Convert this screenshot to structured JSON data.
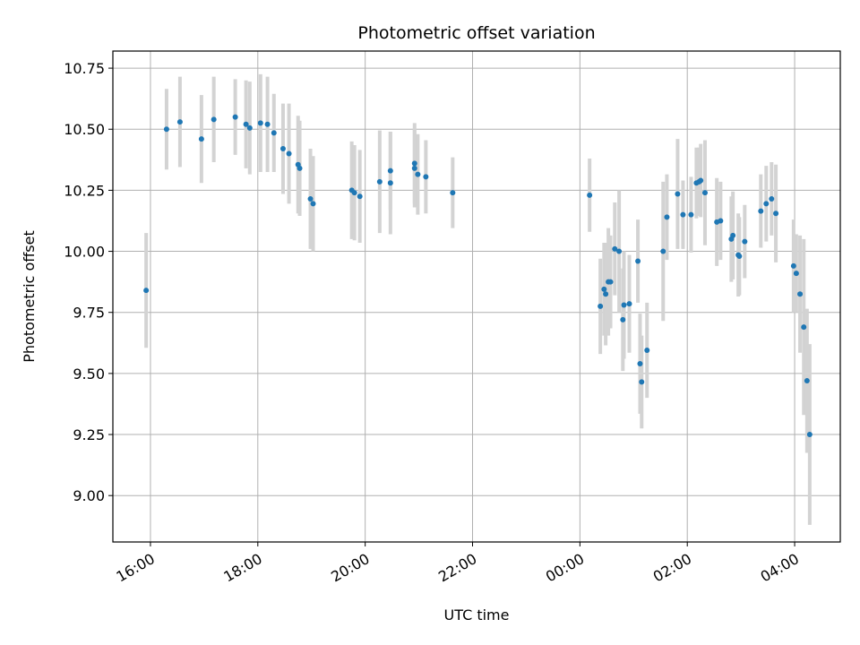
{
  "chart_data": {
    "type": "scatter",
    "title": "Photometric offset variation",
    "xlabel": "UTC time",
    "ylabel": "Photometric offset",
    "x_unit": "hours since 16:00 UTC (day 1)",
    "xlim": [
      -0.7,
      12.85
    ],
    "ylim": [
      8.81,
      10.82
    ],
    "grid": true,
    "x_ticks": [
      {
        "value": 0,
        "label": "16:00"
      },
      {
        "value": 2,
        "label": "18:00"
      },
      {
        "value": 4,
        "label": "20:00"
      },
      {
        "value": 6,
        "label": "22:00"
      },
      {
        "value": 8,
        "label": "00:00"
      },
      {
        "value": 10,
        "label": "02:00"
      },
      {
        "value": 12,
        "label": "04:00"
      }
    ],
    "y_ticks": [
      {
        "value": 9.0,
        "label": "9.00"
      },
      {
        "value": 9.25,
        "label": "9.25"
      },
      {
        "value": 9.5,
        "label": "9.50"
      },
      {
        "value": 9.75,
        "label": "9.75"
      },
      {
        "value": 10.0,
        "label": "10.00"
      },
      {
        "value": 10.25,
        "label": "10.25"
      },
      {
        "value": 10.5,
        "label": "10.50"
      },
      {
        "value": 10.75,
        "label": "10.75"
      }
    ],
    "marker_color": "#1f77b4",
    "errorbar_color": "#d3d3d3",
    "series": [
      {
        "name": "Photometric offset",
        "x": [
          -0.08,
          0.3,
          0.55,
          0.95,
          1.18,
          1.58,
          1.78,
          1.85,
          2.05,
          2.18,
          2.3,
          2.47,
          2.58,
          2.75,
          2.78,
          2.98,
          3.03,
          3.75,
          3.8,
          3.9,
          4.27,
          4.47,
          4.47,
          4.92,
          4.92,
          4.98,
          5.13,
          5.63,
          8.18,
          8.38,
          8.45,
          8.48,
          8.53,
          8.57,
          8.65,
          8.73,
          8.8,
          8.82,
          8.92,
          9.08,
          9.12,
          9.15,
          9.25,
          9.55,
          9.62,
          9.82,
          9.92,
          10.07,
          10.17,
          10.22,
          10.25,
          10.33,
          10.55,
          10.62,
          10.82,
          10.85,
          10.95,
          10.97,
          11.07,
          11.37,
          11.47,
          11.57,
          11.65,
          11.98,
          12.03,
          12.1,
          12.17,
          12.23,
          12.28
        ],
        "y": [
          9.84,
          10.5,
          10.53,
          10.46,
          10.54,
          10.55,
          10.52,
          10.505,
          10.525,
          10.52,
          10.485,
          10.42,
          10.4,
          10.355,
          10.34,
          10.215,
          10.195,
          10.25,
          10.24,
          10.225,
          10.285,
          10.33,
          10.28,
          10.36,
          10.34,
          10.315,
          10.305,
          10.24,
          10.23,
          9.775,
          9.845,
          9.825,
          9.875,
          9.875,
          10.01,
          10.0,
          9.72,
          9.78,
          9.785,
          9.96,
          9.54,
          9.465,
          9.595,
          10.0,
          10.14,
          10.235,
          10.15,
          10.15,
          10.28,
          10.285,
          10.29,
          10.24,
          10.12,
          10.125,
          10.05,
          10.065,
          9.985,
          9.98,
          10.04,
          10.165,
          10.195,
          10.215,
          10.155,
          9.94,
          9.91,
          9.825,
          9.69,
          9.47,
          9.25
        ],
        "yerr": [
          0.235,
          0.165,
          0.185,
          0.18,
          0.175,
          0.155,
          0.18,
          0.19,
          0.2,
          0.195,
          0.16,
          0.185,
          0.205,
          0.2,
          0.195,
          0.205,
          0.195,
          0.2,
          0.195,
          0.19,
          0.21,
          0.16,
          0.21,
          0.165,
          0.16,
          0.165,
          0.15,
          0.145,
          0.15,
          0.195,
          0.19,
          0.21,
          0.22,
          0.19,
          0.19,
          0.25,
          0.21,
          0.22,
          0.2,
          0.17,
          0.205,
          0.19,
          0.195,
          0.285,
          0.175,
          0.225,
          0.14,
          0.155,
          0.145,
          0.14,
          0.15,
          0.215,
          0.18,
          0.16,
          0.175,
          0.18,
          0.17,
          0.16,
          0.15,
          0.15,
          0.155,
          0.15,
          0.2,
          0.19,
          0.16,
          0.24,
          0.36,
          0.295,
          0.37
        ]
      }
    ]
  }
}
